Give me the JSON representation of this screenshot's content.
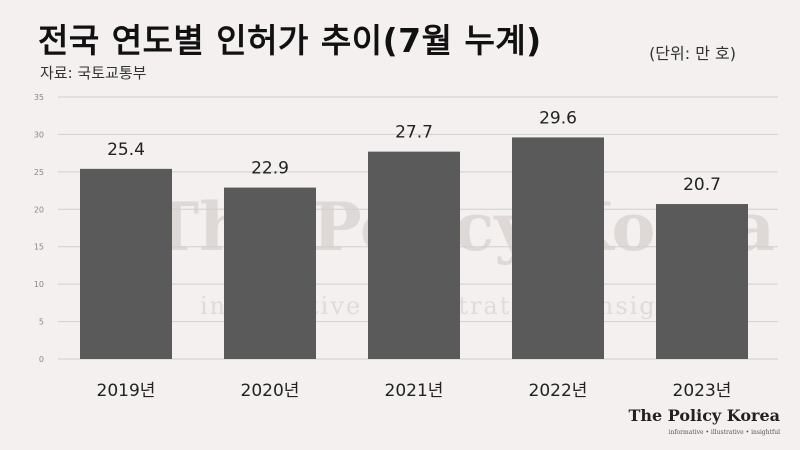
{
  "header": {
    "title": "전국 연도별 인허가 추이(7월 누계)",
    "unit": "(단위: 만 호)",
    "source": "자료: 국토교통부"
  },
  "watermark": {
    "main": "The Policy Korea",
    "sub": "informative • illustrative • insightful"
  },
  "brand": {
    "name": "The Policy Korea",
    "tagline": "informative • illustrative • insightful"
  },
  "colors": {
    "bar": "#5a5a5a",
    "grid": "#d2cfce",
    "background": "#f3f0ef"
  },
  "chart_data": {
    "type": "bar",
    "categories": [
      "2019년",
      "2020년",
      "2021년",
      "2022년",
      "2023년"
    ],
    "values": [
      25.4,
      22.9,
      27.7,
      29.6,
      20.7
    ],
    "value_labels": [
      "25.4",
      "22.9",
      "27.7",
      "29.6",
      "20.7"
    ],
    "yticks": [
      "0",
      "5",
      "10",
      "15",
      "20",
      "25",
      "30",
      "35"
    ],
    "ylim": [
      0,
      35
    ],
    "grid": true,
    "legend": "none"
  }
}
